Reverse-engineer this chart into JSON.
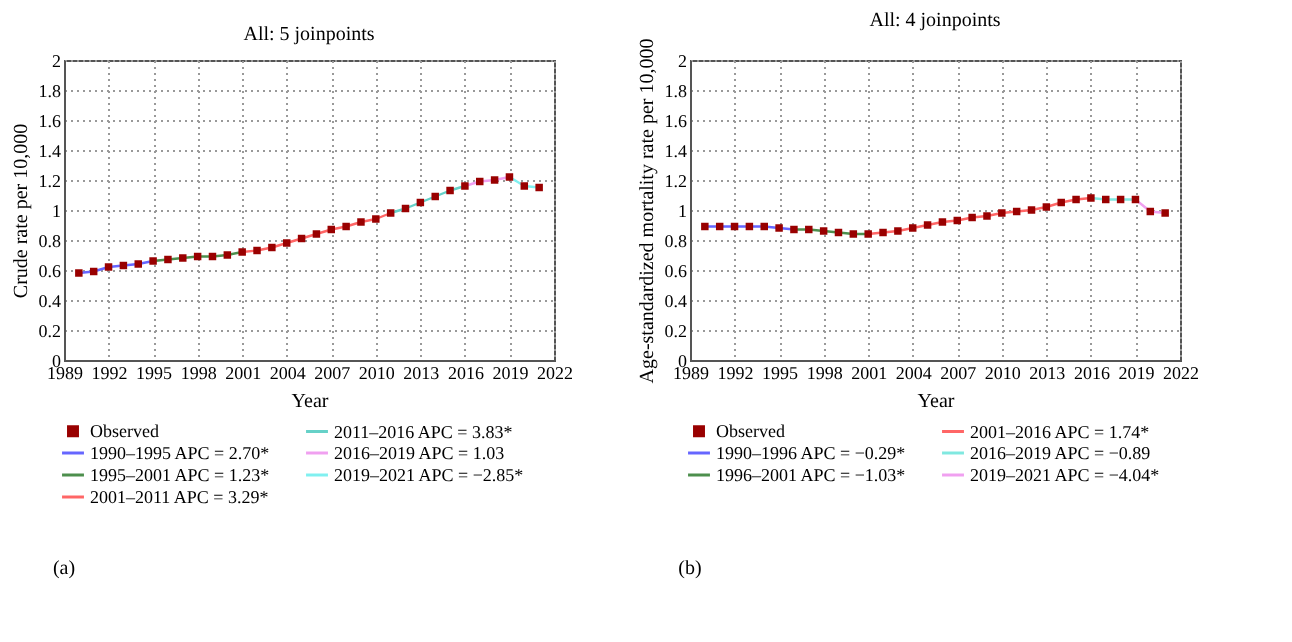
{
  "chart_data": [
    {
      "type": "line",
      "title": "All: 5 joinpoints",
      "xlabel": "Year",
      "ylabel": "Crude rate per 10,000",
      "xlim": [
        1989,
        2022
      ],
      "xticks": [
        1989,
        1992,
        1995,
        1998,
        2001,
        2004,
        2007,
        2010,
        2013,
        2016,
        2019,
        2022
      ],
      "ylim": [
        0,
        2
      ],
      "yticks": [
        0,
        0.2,
        0.4,
        0.6,
        0.8,
        1,
        1.2,
        1.4,
        1.6,
        1.8,
        2
      ],
      "grid": true,
      "legend": "bottom",
      "annotations": [
        "(a)"
      ],
      "series": [
        {
          "name": "Observed",
          "type": "scatter",
          "marker": "square",
          "color": "#990000",
          "x": [
            1990,
            1991,
            1992,
            1993,
            1994,
            1995,
            1996,
            1997,
            1998,
            1999,
            2000,
            2001,
            2002,
            2003,
            2004,
            2005,
            2006,
            2007,
            2008,
            2009,
            2010,
            2011,
            2012,
            2013,
            2014,
            2015,
            2016,
            2017,
            2018,
            2019,
            2020,
            2021
          ],
          "values": [
            0.58,
            0.59,
            0.62,
            0.63,
            0.64,
            0.66,
            0.67,
            0.68,
            0.69,
            0.69,
            0.7,
            0.72,
            0.73,
            0.75,
            0.78,
            0.81,
            0.84,
            0.87,
            0.89,
            0.92,
            0.94,
            0.98,
            1.01,
            1.05,
            1.09,
            1.13,
            1.16,
            1.19,
            1.2,
            1.22,
            1.16,
            1.15
          ]
        },
        {
          "name": "1990–1995 APC = 2.70*",
          "type": "line",
          "color": "#6666ff",
          "x": [
            1990,
            1991,
            1992,
            1993,
            1994,
            1995
          ],
          "values": [
            0.58,
            0.59,
            0.62,
            0.63,
            0.64,
            0.66
          ]
        },
        {
          "name": "1995–2001 APC = 1.23*",
          "type": "line",
          "color": "#4d8f4d",
          "x": [
            1995,
            1996,
            1997,
            1998,
            1999,
            2000,
            2001
          ],
          "values": [
            0.66,
            0.67,
            0.68,
            0.69,
            0.69,
            0.7,
            0.72
          ]
        },
        {
          "name": "2001–2011 APC = 3.29*",
          "type": "line",
          "color": "#ff6666",
          "x": [
            2001,
            2002,
            2003,
            2004,
            2005,
            2006,
            2007,
            2008,
            2009,
            2010,
            2011
          ],
          "values": [
            0.72,
            0.73,
            0.75,
            0.78,
            0.81,
            0.84,
            0.87,
            0.89,
            0.92,
            0.94,
            0.98
          ]
        },
        {
          "name": "2011–2016 APC = 3.83*",
          "type": "line",
          "color": "#66d1c8",
          "x": [
            2011,
            2012,
            2013,
            2014,
            2015,
            2016
          ],
          "values": [
            0.98,
            1.01,
            1.05,
            1.09,
            1.13,
            1.16
          ]
        },
        {
          "name": "2016–2019 APC = 1.03",
          "type": "line",
          "color": "#f0a0f0",
          "x": [
            2016,
            2017,
            2018,
            2019
          ],
          "values": [
            1.16,
            1.19,
            1.2,
            1.22
          ]
        },
        {
          "name": "2019–2021 APC = −2.85*",
          "type": "line",
          "color": "#80f0f0",
          "x": [
            2019,
            2020,
            2021
          ],
          "values": [
            1.22,
            1.16,
            1.15
          ]
        }
      ]
    },
    {
      "type": "line",
      "title": "All: 4 joinpoints",
      "xlabel": "Year",
      "ylabel": "Age-standardized mortality rate per 10,000",
      "xlim": [
        1989,
        2022
      ],
      "xticks": [
        1989,
        1992,
        1995,
        1998,
        2001,
        2004,
        2007,
        2010,
        2013,
        2016,
        2019,
        2022
      ],
      "ylim": [
        0,
        2
      ],
      "yticks": [
        0,
        0.2,
        0.4,
        0.6,
        0.8,
        1,
        1.2,
        1.4,
        1.6,
        1.8,
        2
      ],
      "grid": true,
      "legend": "bottom",
      "annotations": [
        "(b)"
      ],
      "series": [
        {
          "name": "Observed",
          "type": "scatter",
          "marker": "square",
          "color": "#990000",
          "x": [
            1990,
            1991,
            1992,
            1993,
            1994,
            1995,
            1996,
            1997,
            1998,
            1999,
            2000,
            2001,
            2002,
            2003,
            2004,
            2005,
            2006,
            2007,
            2008,
            2009,
            2010,
            2011,
            2012,
            2013,
            2014,
            2015,
            2016,
            2017,
            2018,
            2019,
            2020,
            2021
          ],
          "values": [
            0.89,
            0.89,
            0.89,
            0.89,
            0.89,
            0.88,
            0.87,
            0.87,
            0.86,
            0.85,
            0.84,
            0.84,
            0.85,
            0.86,
            0.88,
            0.9,
            0.92,
            0.93,
            0.95,
            0.96,
            0.98,
            0.99,
            1.0,
            1.02,
            1.05,
            1.07,
            1.08,
            1.07,
            1.07,
            1.07,
            0.99,
            0.98
          ]
        },
        {
          "name": "1990–1996 APC = −0.29*",
          "type": "line",
          "color": "#6666ff",
          "x": [
            1990,
            1991,
            1992,
            1993,
            1994,
            1995,
            1996
          ],
          "values": [
            0.89,
            0.89,
            0.89,
            0.89,
            0.89,
            0.88,
            0.87
          ]
        },
        {
          "name": "1996–2001 APC = −1.03*",
          "type": "line",
          "color": "#4d8f4d",
          "x": [
            1996,
            1997,
            1998,
            1999,
            2000,
            2001
          ],
          "values": [
            0.87,
            0.87,
            0.86,
            0.85,
            0.84,
            0.84
          ]
        },
        {
          "name": "2001–2016 APC = 1.74*",
          "type": "line",
          "color": "#ff6666",
          "x": [
            2001,
            2002,
            2003,
            2004,
            2005,
            2006,
            2007,
            2008,
            2009,
            2010,
            2011,
            2012,
            2013,
            2014,
            2015,
            2016
          ],
          "values": [
            0.84,
            0.85,
            0.86,
            0.88,
            0.9,
            0.92,
            0.93,
            0.95,
            0.96,
            0.98,
            0.99,
            1.0,
            1.02,
            1.05,
            1.07,
            1.08
          ]
        },
        {
          "name": "2016–2019 APC = −0.89",
          "type": "line",
          "color": "#80e8e0",
          "x": [
            2016,
            2017,
            2018,
            2019
          ],
          "values": [
            1.08,
            1.07,
            1.07,
            1.07
          ]
        },
        {
          "name": "2019–2021 APC = −4.04*",
          "type": "line",
          "color": "#f0a0f0",
          "x": [
            2019,
            2020,
            2021
          ],
          "values": [
            1.07,
            0.99,
            0.98
          ]
        }
      ]
    }
  ]
}
